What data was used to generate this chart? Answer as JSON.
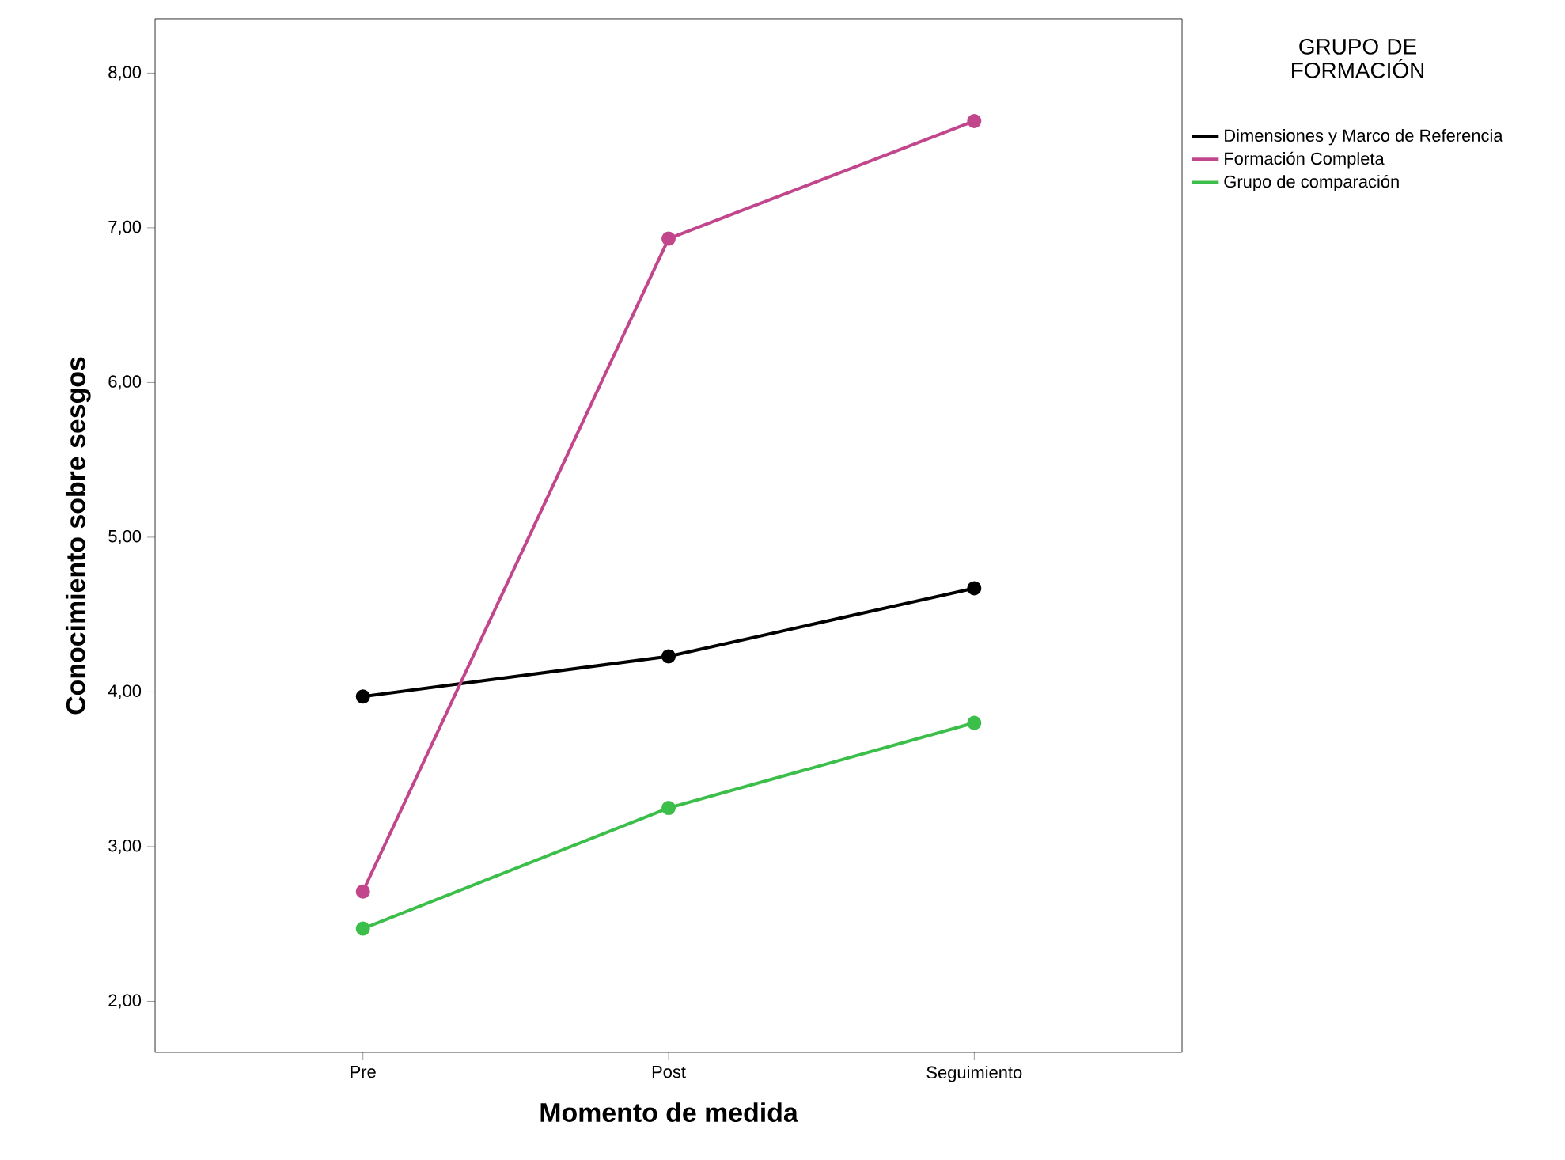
{
  "chart_data": {
    "type": "line",
    "xlabel": "Momento de medida",
    "ylabel": "Conocimiento sobre sesgos",
    "legend_title": "GRUPO DE FORMACIÓN",
    "categories": [
      "Pre",
      "Post",
      "Seguimiento"
    ],
    "series": [
      {
        "name": "Dimensiones y Marco de Referencia",
        "color": "#000000",
        "values": [
          3.97,
          4.23,
          4.67
        ]
      },
      {
        "name": "Formación Completa",
        "color": "#c2468c",
        "values": [
          2.71,
          6.93,
          7.69
        ]
      },
      {
        "name": "Grupo de comparación",
        "color": "#3cbf4a",
        "values": [
          2.47,
          3.25,
          3.8
        ]
      }
    ],
    "ylim": [
      1.67,
      8.35
    ],
    "yticks": [
      {
        "value": 2,
        "label": "2,00"
      },
      {
        "value": 3,
        "label": "3,00"
      },
      {
        "value": 4,
        "label": "4,00"
      },
      {
        "value": 5,
        "label": "5,00"
      },
      {
        "value": 6,
        "label": "6,00"
      },
      {
        "value": 7,
        "label": "7,00"
      },
      {
        "value": 8,
        "label": "8,00"
      }
    ],
    "legend": "top right",
    "marker": "circle",
    "line_style": "solid",
    "grid": false
  }
}
